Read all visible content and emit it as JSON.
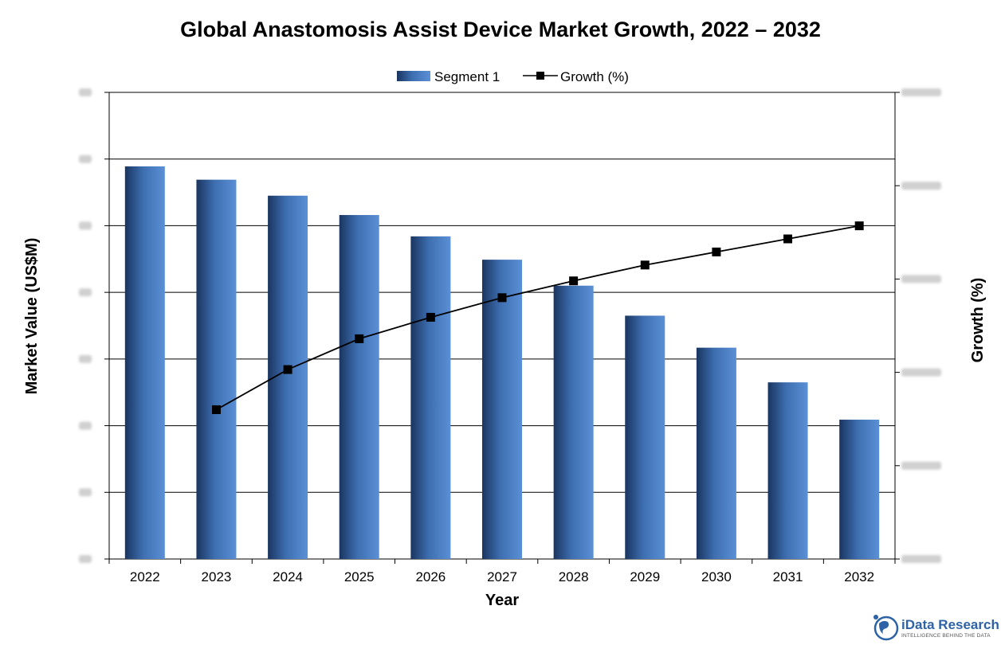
{
  "chart_data": {
    "type": "bar",
    "title": "Global Anastomosis Assist Device Market Growth, 2022 – 2032",
    "xlabel": "Year",
    "ylabel": "Market Value (US$M)",
    "y2label": "Growth (%)",
    "categories": [
      "2022",
      "2023",
      "2024",
      "2025",
      "2026",
      "2027",
      "2028",
      "2029",
      "2030",
      "2031",
      "2032"
    ],
    "series": [
      {
        "name": "Segment 1",
        "type": "bar",
        "axis": "left",
        "values": [
          5.89,
          5.69,
          5.45,
          5.16,
          4.84,
          4.49,
          4.1,
          3.65,
          3.17,
          2.65,
          2.09
        ]
      },
      {
        "name": "Growth (%)",
        "type": "line",
        "axis": "right",
        "values": [
          null,
          1.6,
          2.03,
          2.36,
          2.59,
          2.8,
          2.98,
          3.15,
          3.29,
          3.43,
          3.57
        ]
      }
    ],
    "ylim": [
      0,
      7
    ],
    "y2lim": [
      0,
      5
    ],
    "grid": true,
    "legend": "top-center",
    "colors": {
      "bar_dark": "#1a3560",
      "bar_mid": "#3d6eb0",
      "bar_light": "#5b90d6",
      "line": "#000000",
      "marker": "#000000",
      "grid": "#000000"
    }
  },
  "watermark": {
    "name": "iData Research",
    "tagline": "INTELLIGENCE BEHIND THE DATA"
  }
}
